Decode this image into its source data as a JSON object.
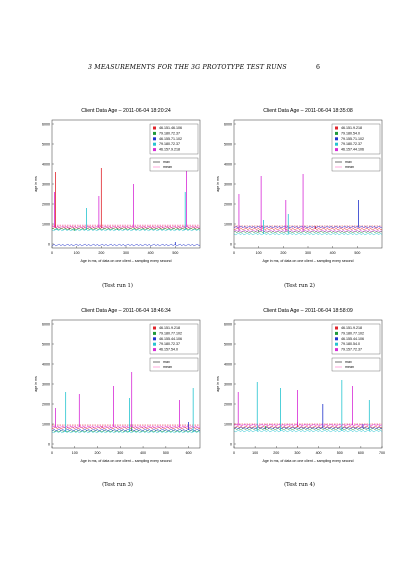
{
  "header": {
    "title": "3   MEASUREMENTS FOR THE 3G PROTOTYPE TEST RUNS",
    "page_number": "6"
  },
  "colors": {
    "series": [
      "#e0252b",
      "#1f9a3a",
      "#2233cc",
      "#25c4d0",
      "#d62ad6"
    ],
    "max_line": "#111111",
    "mean_line": "#ff6ec7"
  },
  "chart_data": [
    {
      "type": "line",
      "title": "Client Data Age – 2011-06-04 18:20:24",
      "xlabel": "Age in ms, of data on one client – sampling every second",
      "ylabel": "age in ms",
      "xlim": [
        0,
        600
      ],
      "ylim": [
        -200,
        6200
      ],
      "xticks": [
        "0",
        "100",
        "200",
        "300",
        "400",
        "500"
      ],
      "xtick_values": [
        0,
        100,
        200,
        300,
        400,
        500
      ],
      "yticks": [
        "0",
        "1000",
        "2000",
        "3000",
        "4000",
        "5000",
        "6000"
      ],
      "ytick_values": [
        0,
        1000,
        2000,
        3000,
        4000,
        5000,
        6000
      ],
      "legend": [
        "46.151.46.106",
        "79.180.72.37",
        "46.155.71.102",
        "79.180.72.37",
        "46.157.9.218"
      ],
      "legend_lines": [
        "max",
        "mean"
      ],
      "reference_lines": [
        900,
        950
      ],
      "series": [
        {
          "baseline": 800,
          "spikes": [
            [
              14,
              3600
            ],
            [
              70,
              700
            ],
            [
              200,
              3800
            ]
          ]
        },
        {
          "baseline": 750,
          "spikes": [
            [
              90,
              650
            ],
            [
              265,
              700
            ]
          ]
        },
        {
          "baseline": -50,
          "spikes": [
            [
              500,
              100
            ]
          ]
        },
        {
          "baseline": 700,
          "spikes": [
            [
              20,
              800
            ],
            [
              140,
              1800
            ],
            [
              540,
              2600
            ]
          ]
        },
        {
          "baseline": 850,
          "spikes": [
            [
              10,
              2600
            ],
            [
              190,
              2400
            ],
            [
              330,
              3000
            ],
            [
              545,
              4100
            ]
          ]
        }
      ],
      "caption": "(Test run 1)"
    },
    {
      "type": "line",
      "title": "Client Data Age – 2011-06-04 18:35:08",
      "xlabel": "Age in ms, of data on one client – sampling every second",
      "ylabel": "age in ms",
      "xlim": [
        0,
        600
      ],
      "ylim": [
        -200,
        6200
      ],
      "xticks": [
        "0",
        "100",
        "200",
        "300",
        "400",
        "500"
      ],
      "xtick_values": [
        0,
        100,
        200,
        300,
        400,
        500
      ],
      "yticks": [
        "0",
        "1000",
        "2000",
        "3000",
        "4000",
        "5000",
        "6000"
      ],
      "ytick_values": [
        0,
        1000,
        2000,
        3000,
        4000,
        5000,
        6000
      ],
      "legend": [
        "46.151.9.218",
        "79.180.54.0",
        "79.155.71.102",
        "79.180.72.37",
        "46.157.44.106"
      ],
      "legend_lines": [
        "max",
        "mean"
      ],
      "reference_lines": [
        900,
        820
      ],
      "series": [
        {
          "baseline": 750,
          "spikes": [
            [
              330,
              900
            ]
          ]
        },
        {
          "baseline": 600,
          "spikes": [
            [
              100,
              700
            ]
          ]
        },
        {
          "baseline": 850,
          "spikes": [
            [
              505,
              2200
            ]
          ]
        },
        {
          "baseline": 500,
          "spikes": [
            [
              120,
              1200
            ],
            [
              220,
              1500
            ]
          ]
        },
        {
          "baseline": 650,
          "spikes": [
            [
              20,
              2500
            ],
            [
              110,
              3400
            ],
            [
              210,
              2200
            ],
            [
              280,
              3500
            ]
          ]
        }
      ],
      "caption": "(Test run 2)"
    },
    {
      "type": "line",
      "title": "Client Data Age – 2011-06-04 18:46:34",
      "xlabel": "Age in ms, of data on one client – sampling every second",
      "ylabel": "age in ms",
      "xlim": [
        0,
        650
      ],
      "ylim": [
        -200,
        6200
      ],
      "xticks": [
        "0",
        "100",
        "200",
        "300",
        "400",
        "500",
        "600"
      ],
      "xtick_values": [
        0,
        100,
        200,
        300,
        400,
        500,
        600
      ],
      "yticks": [
        "0",
        "1000",
        "2000",
        "3000",
        "4000",
        "5000",
        "6000"
      ],
      "ytick_values": [
        0,
        1000,
        2000,
        3000,
        4000,
        5000,
        6000
      ],
      "legend": [
        "46.151.9.218",
        "79.180.77.102",
        "46.155.44.106",
        "79.180.72.37",
        "46.157.54.0"
      ],
      "legend_lines": [
        "max",
        "mean"
      ],
      "reference_lines": [
        950,
        900
      ],
      "series": [
        {
          "baseline": 800,
          "spikes": [
            [
              220,
              900
            ]
          ]
        },
        {
          "baseline": 650,
          "spikes": [
            [
              350,
              1000
            ]
          ]
        },
        {
          "baseline": 700,
          "spikes": [
            [
              600,
              1100
            ]
          ]
        },
        {
          "baseline": 600,
          "spikes": [
            [
              60,
              2600
            ],
            [
              340,
              2300
            ],
            [
              620,
              2800
            ]
          ]
        },
        {
          "baseline": 850,
          "spikes": [
            [
              15,
              1800
            ],
            [
              120,
              2500
            ],
            [
              270,
              2900
            ],
            [
              350,
              3600
            ],
            [
              560,
              2200
            ]
          ]
        }
      ],
      "caption": "(Test run 3)"
    },
    {
      "type": "line",
      "title": "Client Data Age – 2011-06-04 18:58:09",
      "xlabel": "Age in ms, of data on one client – sampling every second",
      "ylabel": "age in ms",
      "xlim": [
        0,
        700
      ],
      "ylim": [
        -200,
        6200
      ],
      "xticks": [
        "0",
        "100",
        "200",
        "300",
        "400",
        "500",
        "600",
        "700"
      ],
      "xtick_values": [
        0,
        100,
        200,
        300,
        400,
        500,
        600,
        700
      ],
      "yticks": [
        "0",
        "1000",
        "2000",
        "3000",
        "4000",
        "5000",
        "6000"
      ],
      "ytick_values": [
        0,
        1000,
        2000,
        3000,
        4000,
        5000,
        6000
      ],
      "legend": [
        "46.151.9.218",
        "79.180.77.102",
        "46.155.44.106",
        "79.180.54.0",
        "79.157.72.37"
      ],
      "legend_lines": [
        "max",
        "mean"
      ],
      "reference_lines": [
        1000,
        950
      ],
      "series": [
        {
          "baseline": 850,
          "spikes": [
            [
              300,
              1100
            ]
          ]
        },
        {
          "baseline": 750,
          "spikes": [
            [
              150,
              900
            ]
          ]
        },
        {
          "baseline": 800,
          "spikes": [
            [
              420,
              2000
            ],
            [
              610,
              1000
            ]
          ]
        },
        {
          "baseline": 650,
          "spikes": [
            [
              110,
              3100
            ],
            [
              220,
              2800
            ],
            [
              510,
              3200
            ],
            [
              640,
              2200
            ]
          ]
        },
        {
          "baseline": 950,
          "spikes": [
            [
              20,
              2600
            ],
            [
              300,
              2700
            ],
            [
              560,
              2900
            ]
          ]
        }
      ],
      "caption": "(Test run 4)"
    }
  ]
}
